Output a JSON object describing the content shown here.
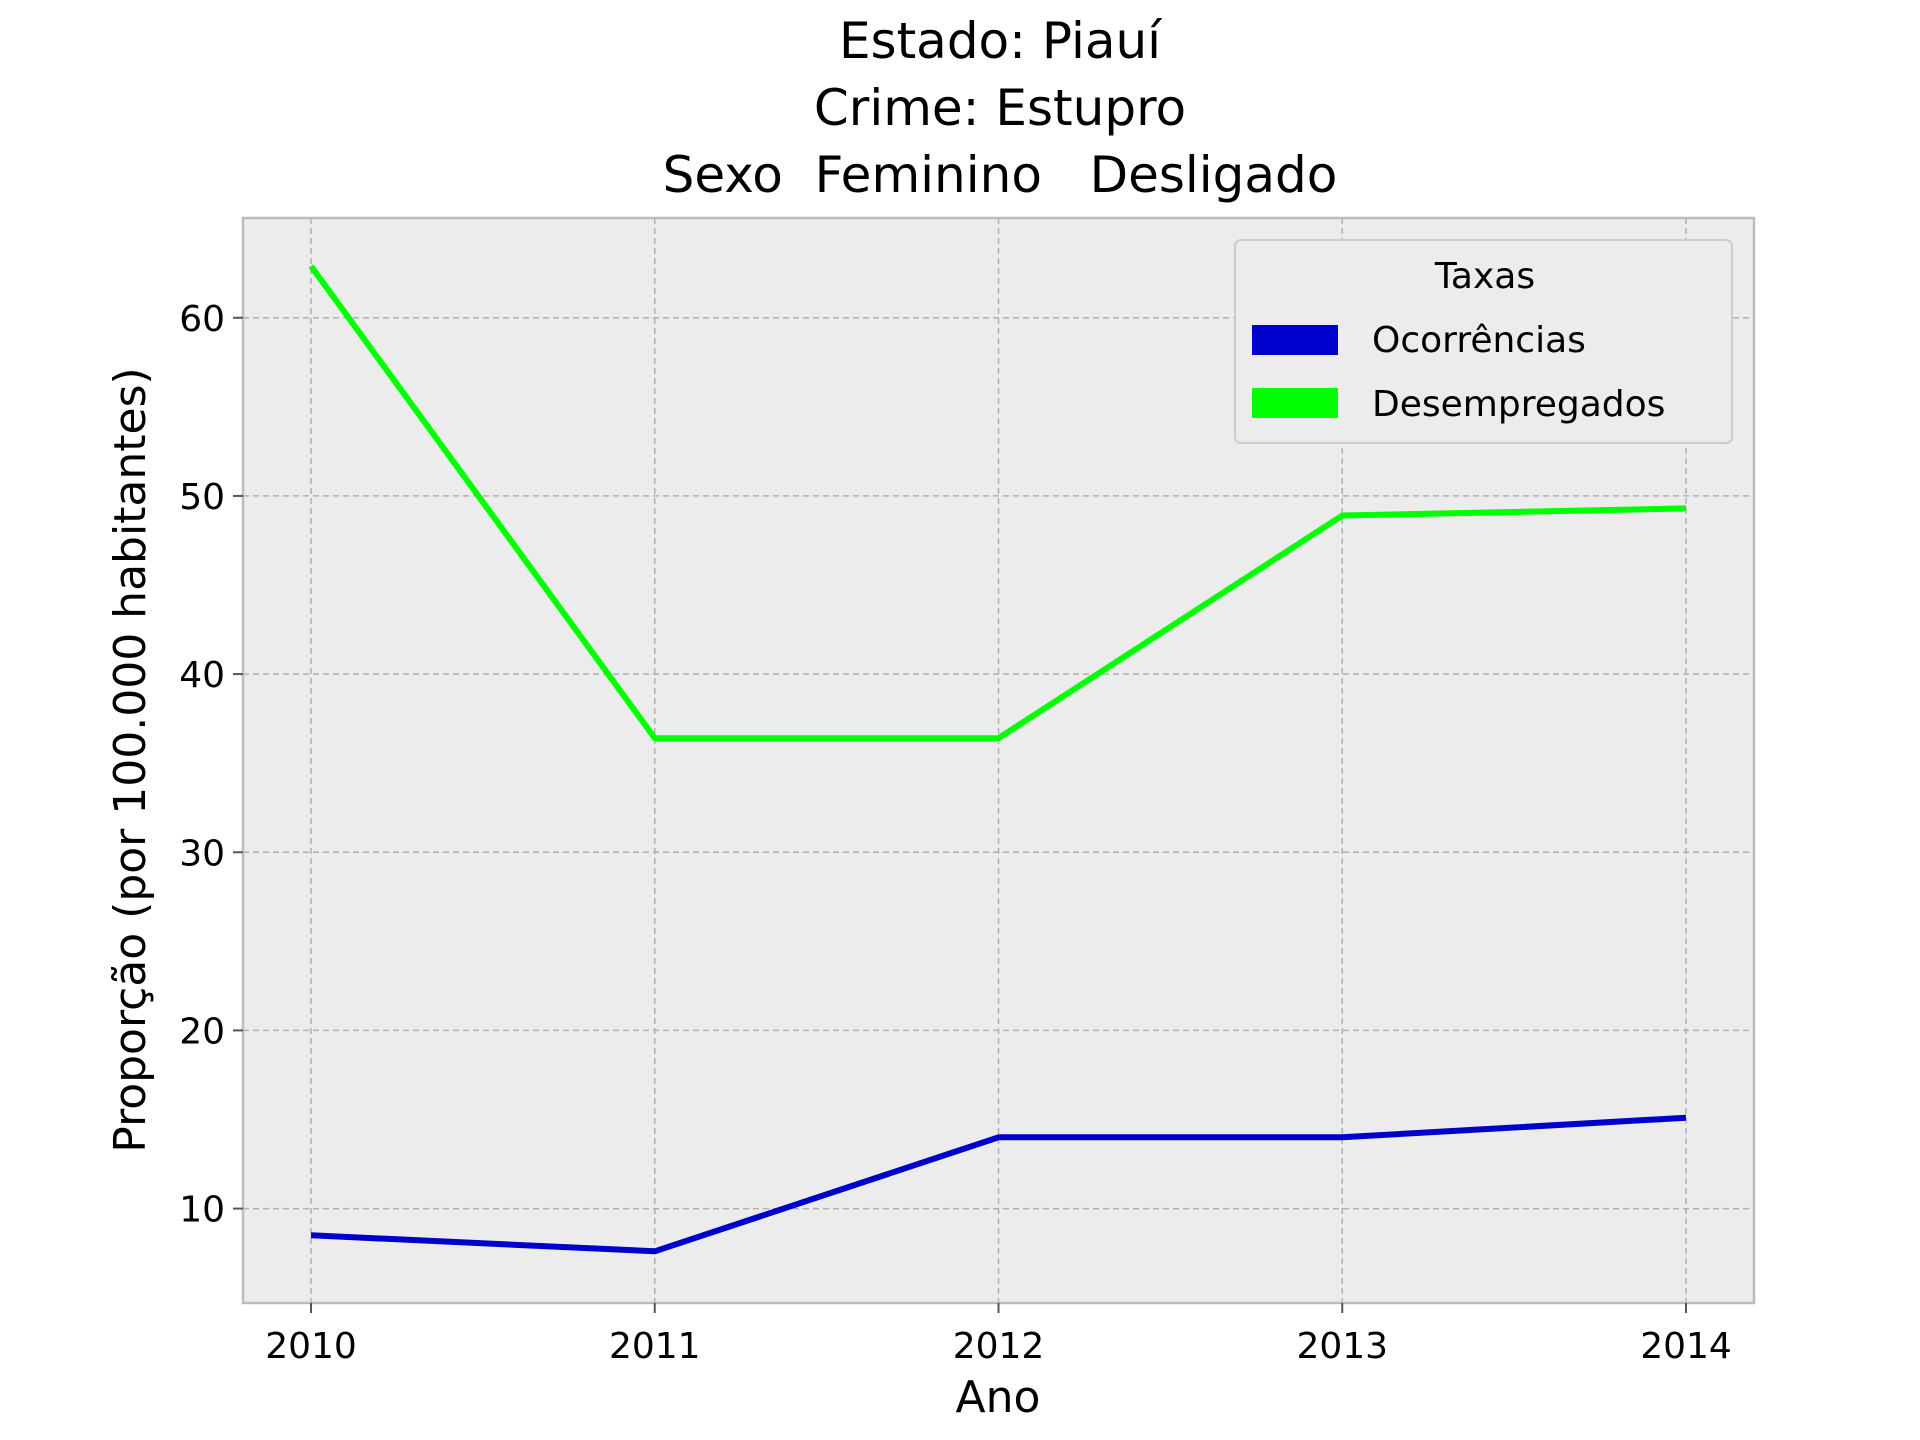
{
  "chart_data": {
    "type": "line",
    "title_lines": [
      "Estado: Piauí",
      "Crime: Estupro",
      "Sexo  Feminino   Desligado"
    ],
    "xlabel": "Ano",
    "ylabel": "Proporção (por 100.000 habitantes)",
    "categories": [
      "2010",
      "2011",
      "2012",
      "2013",
      "2014"
    ],
    "y_ticks": [
      10,
      20,
      30,
      40,
      50,
      60
    ],
    "ylim": [
      4.7,
      65.6
    ],
    "grid": true,
    "legend": {
      "title": "Taxas",
      "placement": "upper right"
    },
    "series": [
      {
        "name": "Ocorrências",
        "color": "#0000cc",
        "values": [
          8.5,
          7.6,
          14.0,
          14.0,
          15.1
        ]
      },
      {
        "name": "Desempregados",
        "color": "#00ff00",
        "values": [
          62.9,
          36.4,
          36.4,
          48.9,
          49.3
        ]
      }
    ],
    "colors": {
      "plot_background": "#ececec",
      "grid": "#b0b0b0",
      "frame": "#bcbcbc"
    }
  }
}
